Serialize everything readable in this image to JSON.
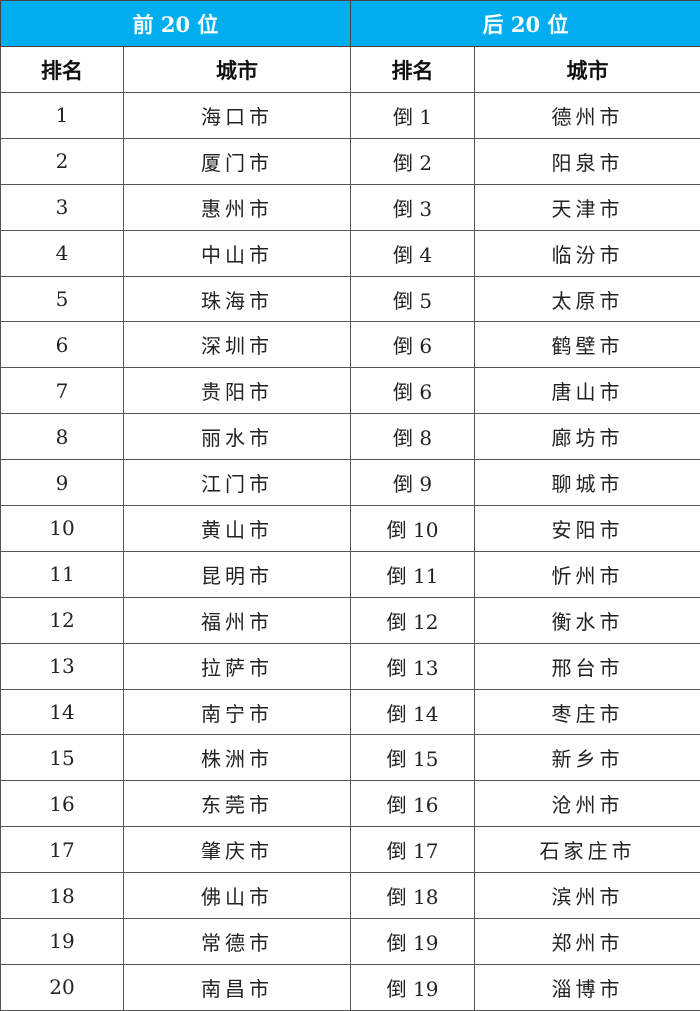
{
  "table": {
    "group_headers": [
      "前 20 位",
      "后 20 位"
    ],
    "column_headers": [
      "排名",
      "城市",
      "排名",
      "城市"
    ],
    "header_color": "#00aeef",
    "rows": [
      {
        "top_rank": "1",
        "top_city": "海口市",
        "bottom_rank": "倒 1",
        "bottom_city": "德州市"
      },
      {
        "top_rank": "2",
        "top_city": "厦门市",
        "bottom_rank": "倒 2",
        "bottom_city": "阳泉市"
      },
      {
        "top_rank": "3",
        "top_city": "惠州市",
        "bottom_rank": "倒 3",
        "bottom_city": "天津市"
      },
      {
        "top_rank": "4",
        "top_city": "中山市",
        "bottom_rank": "倒 4",
        "bottom_city": "临汾市"
      },
      {
        "top_rank": "5",
        "top_city": "珠海市",
        "bottom_rank": "倒 5",
        "bottom_city": "太原市"
      },
      {
        "top_rank": "6",
        "top_city": "深圳市",
        "bottom_rank": "倒 6",
        "bottom_city": "鹤壁市"
      },
      {
        "top_rank": "7",
        "top_city": "贵阳市",
        "bottom_rank": "倒 6",
        "bottom_city": "唐山市"
      },
      {
        "top_rank": "8",
        "top_city": "丽水市",
        "bottom_rank": "倒 8",
        "bottom_city": "廊坊市"
      },
      {
        "top_rank": "9",
        "top_city": "江门市",
        "bottom_rank": "倒 9",
        "bottom_city": "聊城市"
      },
      {
        "top_rank": "10",
        "top_city": "黄山市",
        "bottom_rank": "倒 10",
        "bottom_city": "安阳市"
      },
      {
        "top_rank": "11",
        "top_city": "昆明市",
        "bottom_rank": "倒 11",
        "bottom_city": "忻州市"
      },
      {
        "top_rank": "12",
        "top_city": "福州市",
        "bottom_rank": "倒 12",
        "bottom_city": "衡水市"
      },
      {
        "top_rank": "13",
        "top_city": "拉萨市",
        "bottom_rank": "倒 13",
        "bottom_city": "邢台市"
      },
      {
        "top_rank": "14",
        "top_city": "南宁市",
        "bottom_rank": "倒 14",
        "bottom_city": "枣庄市"
      },
      {
        "top_rank": "15",
        "top_city": "株洲市",
        "bottom_rank": "倒 15",
        "bottom_city": "新乡市"
      },
      {
        "top_rank": "16",
        "top_city": "东莞市",
        "bottom_rank": "倒 16",
        "bottom_city": "沧州市"
      },
      {
        "top_rank": "17",
        "top_city": "肇庆市",
        "bottom_rank": "倒 17",
        "bottom_city": "石家庄市"
      },
      {
        "top_rank": "18",
        "top_city": "佛山市",
        "bottom_rank": "倒 18",
        "bottom_city": "滨州市"
      },
      {
        "top_rank": "19",
        "top_city": "常德市",
        "bottom_rank": "倒 19",
        "bottom_city": "郑州市"
      },
      {
        "top_rank": "20",
        "top_city": "南昌市",
        "bottom_rank": "倒 19",
        "bottom_city": "淄博市"
      }
    ]
  }
}
